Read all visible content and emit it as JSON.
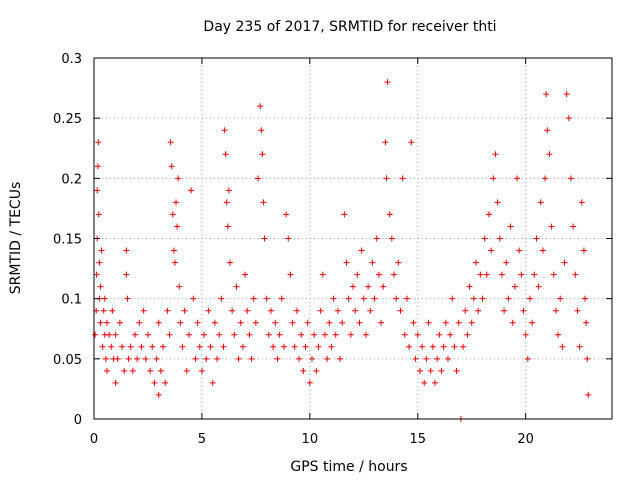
{
  "chart_data": {
    "type": "scatter",
    "title": "Day 235 of 2017, SRMTID for receiver thti",
    "xlabel": "GPS time / hours",
    "ylabel": "SRMTID / TECUs",
    "xlim": [
      0,
      24
    ],
    "ylim": [
      0,
      0.3
    ],
    "xticks": [
      0,
      5,
      10,
      15,
      20
    ],
    "xtick_labels": [
      "0",
      "5",
      "10",
      "15",
      "20"
    ],
    "yticks": [
      0,
      0.05,
      0.1,
      0.15,
      0.2,
      0.25,
      0.3
    ],
    "ytick_labels": [
      "0",
      "0.05",
      "0.1",
      "0.15",
      "0.2",
      "0.25",
      "0.3"
    ],
    "grid": true,
    "marker": "+",
    "color": "#ee0000",
    "series": [
      {
        "name": "SRMTID",
        "points": [
          [
            0.05,
            0.07
          ],
          [
            0.1,
            0.09
          ],
          [
            0.12,
            0.12
          ],
          [
            0.15,
            0.15
          ],
          [
            0.15,
            0.19
          ],
          [
            0.18,
            0.21
          ],
          [
            0.2,
            0.23
          ],
          [
            0.22,
            0.17
          ],
          [
            0.25,
            0.13
          ],
          [
            0.25,
            0.1
          ],
          [
            0.3,
            0.11
          ],
          [
            0.3,
            0.08
          ],
          [
            0.35,
            0.14
          ],
          [
            0.4,
            0.06
          ],
          [
            0.45,
            0.09
          ],
          [
            0.5,
            0.1
          ],
          [
            0.5,
            0.07
          ],
          [
            0.55,
            0.05
          ],
          [
            0.6,
            0.08
          ],
          [
            0.6,
            0.04
          ],
          [
            0.7,
            0.07
          ],
          [
            0.8,
            0.06
          ],
          [
            0.85,
            0.09
          ],
          [
            0.9,
            0.05
          ],
          [
            1.0,
            0.03
          ],
          [
            1.0,
            0.07
          ],
          [
            1.1,
            0.05
          ],
          [
            1.2,
            0.08
          ],
          [
            1.3,
            0.06
          ],
          [
            1.4,
            0.04
          ],
          [
            1.5,
            0.14
          ],
          [
            1.5,
            0.12
          ],
          [
            1.55,
            0.1
          ],
          [
            1.6,
            0.05
          ],
          [
            1.7,
            0.06
          ],
          [
            1.8,
            0.04
          ],
          [
            1.9,
            0.07
          ],
          [
            2.0,
            0.05
          ],
          [
            2.1,
            0.08
          ],
          [
            2.2,
            0.06
          ],
          [
            2.3,
            0.09
          ],
          [
            2.4,
            0.05
          ],
          [
            2.5,
            0.07
          ],
          [
            2.6,
            0.04
          ],
          [
            2.7,
            0.06
          ],
          [
            2.8,
            0.03
          ],
          [
            2.9,
            0.05
          ],
          [
            3.0,
            0.02
          ],
          [
            3.0,
            0.08
          ],
          [
            3.1,
            0.04
          ],
          [
            3.2,
            0.06
          ],
          [
            3.3,
            0.03
          ],
          [
            3.4,
            0.09
          ],
          [
            3.5,
            0.07
          ],
          [
            3.55,
            0.23
          ],
          [
            3.6,
            0.21
          ],
          [
            3.65,
            0.17
          ],
          [
            3.7,
            0.14
          ],
          [
            3.75,
            0.13
          ],
          [
            3.8,
            0.18
          ],
          [
            3.85,
            0.16
          ],
          [
            3.9,
            0.2
          ],
          [
            3.95,
            0.11
          ],
          [
            4.0,
            0.08
          ],
          [
            4.1,
            0.06
          ],
          [
            4.2,
            0.09
          ],
          [
            4.3,
            0.04
          ],
          [
            4.4,
            0.07
          ],
          [
            4.5,
            0.19
          ],
          [
            4.6,
            0.1
          ],
          [
            4.7,
            0.05
          ],
          [
            4.8,
            0.08
          ],
          [
            4.9,
            0.06
          ],
          [
            5.0,
            0.04
          ],
          [
            5.1,
            0.07
          ],
          [
            5.2,
            0.05
          ],
          [
            5.3,
            0.09
          ],
          [
            5.4,
            0.06
          ],
          [
            5.5,
            0.03
          ],
          [
            5.6,
            0.08
          ],
          [
            5.7,
            0.05
          ],
          [
            5.8,
            0.07
          ],
          [
            5.9,
            0.1
          ],
          [
            6.0,
            0.06
          ],
          [
            6.05,
            0.24
          ],
          [
            6.1,
            0.22
          ],
          [
            6.15,
            0.18
          ],
          [
            6.2,
            0.16
          ],
          [
            6.25,
            0.19
          ],
          [
            6.3,
            0.13
          ],
          [
            6.4,
            0.09
          ],
          [
            6.5,
            0.07
          ],
          [
            6.6,
            0.11
          ],
          [
            6.7,
            0.05
          ],
          [
            6.8,
            0.08
          ],
          [
            6.9,
            0.06
          ],
          [
            7.0,
            0.12
          ],
          [
            7.1,
            0.09
          ],
          [
            7.2,
            0.07
          ],
          [
            7.3,
            0.05
          ],
          [
            7.4,
            0.1
          ],
          [
            7.5,
            0.08
          ],
          [
            7.6,
            0.2
          ],
          [
            7.7,
            0.26
          ],
          [
            7.75,
            0.24
          ],
          [
            7.8,
            0.22
          ],
          [
            7.85,
            0.18
          ],
          [
            7.9,
            0.15
          ],
          [
            8.0,
            0.1
          ],
          [
            8.1,
            0.07
          ],
          [
            8.2,
            0.09
          ],
          [
            8.3,
            0.06
          ],
          [
            8.4,
            0.08
          ],
          [
            8.5,
            0.05
          ],
          [
            8.6,
            0.07
          ],
          [
            8.7,
            0.1
          ],
          [
            8.8,
            0.06
          ],
          [
            8.9,
            0.17
          ],
          [
            9.0,
            0.15
          ],
          [
            9.1,
            0.12
          ],
          [
            9.2,
            0.08
          ],
          [
            9.3,
            0.06
          ],
          [
            9.4,
            0.09
          ],
          [
            9.5,
            0.05
          ],
          [
            9.6,
            0.07
          ],
          [
            9.7,
            0.04
          ],
          [
            9.8,
            0.06
          ],
          [
            9.9,
            0.08
          ],
          [
            10.0,
            0.03
          ],
          [
            10.1,
            0.05
          ],
          [
            10.2,
            0.07
          ],
          [
            10.3,
            0.04
          ],
          [
            10.4,
            0.06
          ],
          [
            10.5,
            0.09
          ],
          [
            10.6,
            0.12
          ],
          [
            10.7,
            0.07
          ],
          [
            10.8,
            0.05
          ],
          [
            10.9,
            0.08
          ],
          [
            11.0,
            0.06
          ],
          [
            11.1,
            0.1
          ],
          [
            11.2,
            0.07
          ],
          [
            11.3,
            0.09
          ],
          [
            11.4,
            0.05
          ],
          [
            11.5,
            0.08
          ],
          [
            11.6,
            0.17
          ],
          [
            11.7,
            0.13
          ],
          [
            11.8,
            0.1
          ],
          [
            11.9,
            0.07
          ],
          [
            12.0,
            0.11
          ],
          [
            12.1,
            0.09
          ],
          [
            12.2,
            0.12
          ],
          [
            12.3,
            0.08
          ],
          [
            12.4,
            0.14
          ],
          [
            12.5,
            0.1
          ],
          [
            12.6,
            0.07
          ],
          [
            12.7,
            0.11
          ],
          [
            12.8,
            0.09
          ],
          [
            12.9,
            0.13
          ],
          [
            13.0,
            0.1
          ],
          [
            13.1,
            0.15
          ],
          [
            13.2,
            0.12
          ],
          [
            13.3,
            0.08
          ],
          [
            13.4,
            0.11
          ],
          [
            13.5,
            0.23
          ],
          [
            13.55,
            0.2
          ],
          [
            13.6,
            0.28
          ],
          [
            13.7,
            0.17
          ],
          [
            13.8,
            0.15
          ],
          [
            13.9,
            0.12
          ],
          [
            14.0,
            0.1
          ],
          [
            14.1,
            0.13
          ],
          [
            14.2,
            0.09
          ],
          [
            14.3,
            0.2
          ],
          [
            14.4,
            0.07
          ],
          [
            14.5,
            0.1
          ],
          [
            14.6,
            0.06
          ],
          [
            14.7,
            0.23
          ],
          [
            14.8,
            0.08
          ],
          [
            14.9,
            0.05
          ],
          [
            15.0,
            0.07
          ],
          [
            15.1,
            0.04
          ],
          [
            15.2,
            0.06
          ],
          [
            15.3,
            0.03
          ],
          [
            15.4,
            0.05
          ],
          [
            15.5,
            0.08
          ],
          [
            15.6,
            0.04
          ],
          [
            15.7,
            0.06
          ],
          [
            15.8,
            0.03
          ],
          [
            15.9,
            0.05
          ],
          [
            16.0,
            0.07
          ],
          [
            16.1,
            0.04
          ],
          [
            16.2,
            0.06
          ],
          [
            16.3,
            0.08
          ],
          [
            16.4,
            0.05
          ],
          [
            16.5,
            0.07
          ],
          [
            16.6,
            0.1
          ],
          [
            16.7,
            0.06
          ],
          [
            16.8,
            0.04
          ],
          [
            16.9,
            0.08
          ],
          [
            17.0,
            0.0
          ],
          [
            17.1,
            0.06
          ],
          [
            17.2,
            0.09
          ],
          [
            17.3,
            0.07
          ],
          [
            17.4,
            0.11
          ],
          [
            17.5,
            0.08
          ],
          [
            17.6,
            0.1
          ],
          [
            17.7,
            0.13
          ],
          [
            17.8,
            0.09
          ],
          [
            17.9,
            0.12
          ],
          [
            18.0,
            0.1
          ],
          [
            18.1,
            0.15
          ],
          [
            18.2,
            0.12
          ],
          [
            18.3,
            0.17
          ],
          [
            18.4,
            0.14
          ],
          [
            18.5,
            0.2
          ],
          [
            18.6,
            0.22
          ],
          [
            18.7,
            0.18
          ],
          [
            18.8,
            0.15
          ],
          [
            18.9,
            0.12
          ],
          [
            19.0,
            0.09
          ],
          [
            19.1,
            0.13
          ],
          [
            19.2,
            0.1
          ],
          [
            19.3,
            0.16
          ],
          [
            19.4,
            0.08
          ],
          [
            19.5,
            0.11
          ],
          [
            19.6,
            0.2
          ],
          [
            19.7,
            0.14
          ],
          [
            19.8,
            0.12
          ],
          [
            19.9,
            0.09
          ],
          [
            20.0,
            0.07
          ],
          [
            20.1,
            0.05
          ],
          [
            20.2,
            0.1
          ],
          [
            20.3,
            0.08
          ],
          [
            20.4,
            0.12
          ],
          [
            20.5,
            0.15
          ],
          [
            20.6,
            0.11
          ],
          [
            20.7,
            0.18
          ],
          [
            20.8,
            0.14
          ],
          [
            20.9,
            0.2
          ],
          [
            20.95,
            0.27
          ],
          [
            21.0,
            0.24
          ],
          [
            21.1,
            0.22
          ],
          [
            21.2,
            0.16
          ],
          [
            21.3,
            0.12
          ],
          [
            21.4,
            0.09
          ],
          [
            21.5,
            0.07
          ],
          [
            21.6,
            0.1
          ],
          [
            21.7,
            0.06
          ],
          [
            21.8,
            0.13
          ],
          [
            21.9,
            0.27
          ],
          [
            22.0,
            0.25
          ],
          [
            22.1,
            0.2
          ],
          [
            22.2,
            0.16
          ],
          [
            22.3,
            0.12
          ],
          [
            22.4,
            0.09
          ],
          [
            22.5,
            0.06
          ],
          [
            22.6,
            0.18
          ],
          [
            22.7,
            0.14
          ],
          [
            22.75,
            0.1
          ],
          [
            22.8,
            0.08
          ],
          [
            22.85,
            0.05
          ],
          [
            22.9,
            0.02
          ]
        ]
      }
    ]
  }
}
